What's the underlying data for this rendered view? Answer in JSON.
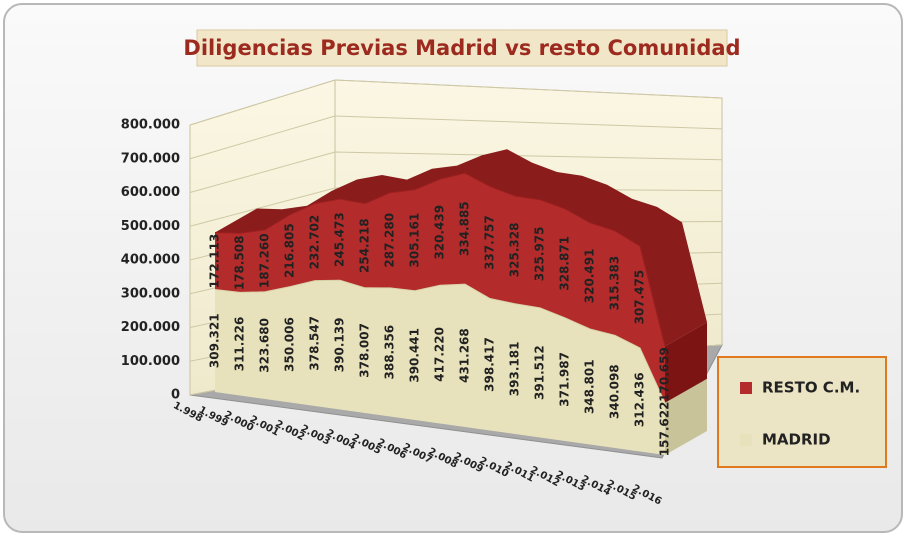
{
  "chart_data": {
    "type": "area3d",
    "title": "Diligencias Previas Madrid vs resto Comunidad",
    "categories": [
      "1.998",
      "1.999",
      "2.000",
      "2.001",
      "2.002",
      "2.003",
      "2.004",
      "2.005",
      "2.006",
      "2.007",
      "2.008",
      "2.009",
      "2.010",
      "2.011",
      "2.012",
      "2.013",
      "2.014",
      "2.015",
      "2.016"
    ],
    "stacked": true,
    "series": [
      {
        "name": "MADRID",
        "color": "#e8e2bc",
        "values": [
          309321,
          311226,
          323680,
          350006,
          378547,
          390139,
          378007,
          388356,
          390441,
          417220,
          431268,
          398417,
          393181,
          391512,
          371987,
          348801,
          340098,
          312436,
          157622
        ],
        "value_labels": [
          "309.321",
          "311.226",
          "323.680",
          "350.006",
          "378.547",
          "390.139",
          "378.007",
          "388.356",
          "390.441",
          "417.220",
          "431.268",
          "398.417",
          "393.181",
          "391.512",
          "371.987",
          "348.801",
          "340.098",
          "312.436",
          "157.622"
        ]
      },
      {
        "name": "RESTO C.M.",
        "color": "#b32b2b",
        "values": [
          172113,
          178508,
          187260,
          216805,
          232702,
          245473,
          254218,
          287280,
          305161,
          320439,
          334885,
          337757,
          325328,
          325975,
          328871,
          320491,
          315383,
          307475,
          170659
        ],
        "value_labels": [
          "172.113",
          "178.508",
          "187.260",
          "216.805",
          "232.702",
          "245.473",
          "254.218",
          "287.280",
          "305.161",
          "320.439",
          "334.885",
          "337.757",
          "325.328",
          "325.975",
          "328.871",
          "320.491",
          "315.383",
          "307.475",
          "170.659"
        ]
      }
    ],
    "ylim": [
      0,
      800000
    ],
    "yticks": [
      0,
      {
        "value": 100000,
        "label": "100.000"
      },
      {
        "value": 200000,
        "label": "200.000"
      },
      {
        "value": 300000,
        "label": "300.000"
      },
      {
        "value": 400000,
        "label": "400.000"
      },
      {
        "value": 500000,
        "label": "500.000"
      },
      {
        "value": 600000,
        "label": "600.000"
      },
      {
        "value": 700000,
        "label": "700.000"
      },
      {
        "value": 800000,
        "label": "800.000"
      }
    ],
    "grid": true,
    "legend": "right"
  }
}
